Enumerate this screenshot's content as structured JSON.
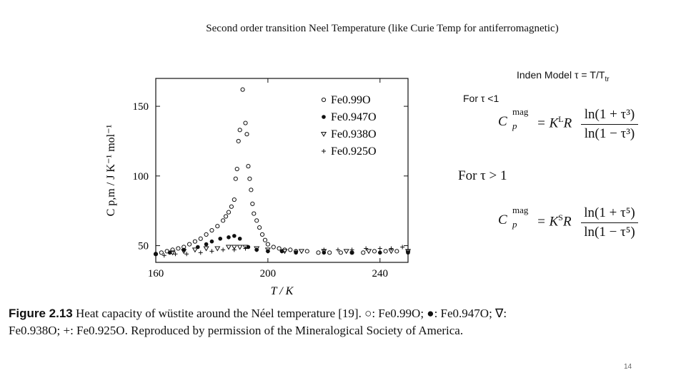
{
  "slide": {
    "title": "Second order transition Neel Temperature (like Curie Temp for antiferromagnetic)",
    "inden_label": "Inden Model τ = T/T",
    "inden_sub": "tr",
    "for_lt": "For τ <1",
    "for_gt": "For τ > 1",
    "page_number": "14"
  },
  "equations": [
    {
      "lhs": "C",
      "sup": "mag",
      "sub": "p",
      "rhs": "= K",
      "rhs_sup": "L",
      "rhs_tail": "R",
      "numerator": "ln(1 + τ³)",
      "denominator": "ln(1 − τ³)"
    },
    {
      "lhs": "C",
      "sup": "mag",
      "sub": "p",
      "rhs": "= K",
      "rhs_sup": "S",
      "rhs_tail": "R",
      "numerator": "ln(1 + τ⁵)",
      "denominator": "ln(1 − τ⁵)"
    }
  ],
  "caption": {
    "figure_label": "Figure 2.13",
    "text": " Heat capacity of wüstite around the Néel temperature [19]. ○: Fe0.99O; ●: Fe0.947O; ∇: Fe0.938O; +: Fe0.925O. Reproduced by permission of the Mineralogical Society of America."
  },
  "chart_data": {
    "type": "scatter",
    "xlabel": "T / K",
    "ylabel": "C p,m / J K⁻¹ mol⁻¹",
    "xlim": [
      160,
      250
    ],
    "ylim": [
      38,
      170
    ],
    "xticks": [
      160,
      200,
      240
    ],
    "yticks": [
      50,
      100,
      150
    ],
    "grid": false,
    "legend_position": "top-right",
    "series": [
      {
        "name": "Fe0.99O",
        "marker": "open-circle",
        "x": [
          160,
          162,
          164,
          166,
          168,
          170,
          172,
          174,
          176,
          178,
          180,
          182,
          184,
          185,
          186,
          187,
          188,
          188.5,
          189,
          189.5,
          190,
          191,
          192,
          192.5,
          193,
          193.5,
          194,
          194.5,
          195,
          196,
          197,
          198,
          199,
          200,
          202,
          204,
          206,
          208,
          210,
          214,
          218,
          222,
          226,
          230,
          234,
          238,
          242,
          246,
          250
        ],
        "y": [
          44,
          45,
          46,
          47,
          48,
          49,
          51,
          53,
          55,
          58,
          61,
          64,
          68,
          71,
          74,
          78,
          83,
          98,
          105,
          125,
          133,
          162,
          138,
          130,
          107,
          98,
          90,
          80,
          73,
          68,
          63,
          58,
          54,
          51,
          49,
          48,
          47,
          47,
          46,
          46,
          45,
          45,
          45,
          45,
          45,
          46,
          46,
          46,
          46
        ]
      },
      {
        "name": "Fe0.947O",
        "marker": "filled-circle",
        "x": [
          160,
          165,
          170,
          175,
          178,
          180,
          183,
          186,
          188,
          190,
          193,
          196,
          200,
          205,
          210,
          220,
          230,
          240,
          250
        ],
        "y": [
          44,
          45,
          47,
          49,
          51,
          53,
          55,
          56,
          57,
          55,
          49,
          47,
          46,
          46,
          45,
          45,
          45,
          45,
          45
        ]
      },
      {
        "name": "Fe0.938O",
        "marker": "open-triangle-down",
        "x": [
          166,
          170,
          174,
          178,
          182,
          186,
          188,
          190,
          192,
          196,
          200,
          206,
          212,
          220,
          228,
          236,
          244,
          250
        ],
        "y": [
          45,
          46,
          47,
          48,
          48,
          49,
          49,
          49,
          49,
          48,
          47,
          46,
          46,
          46,
          46,
          46,
          46,
          46
        ]
      },
      {
        "name": "Fe0.925O",
        "marker": "plus",
        "x": [
          163,
          167,
          171,
          176,
          180,
          184,
          188,
          192,
          196,
          200,
          205,
          210,
          220,
          225,
          230,
          235,
          240,
          244,
          248
        ],
        "y": [
          43,
          44,
          44,
          45,
          46,
          47,
          47,
          48,
          47,
          46,
          46,
          46,
          47,
          47,
          47,
          48,
          48,
          48,
          49
        ]
      }
    ]
  }
}
